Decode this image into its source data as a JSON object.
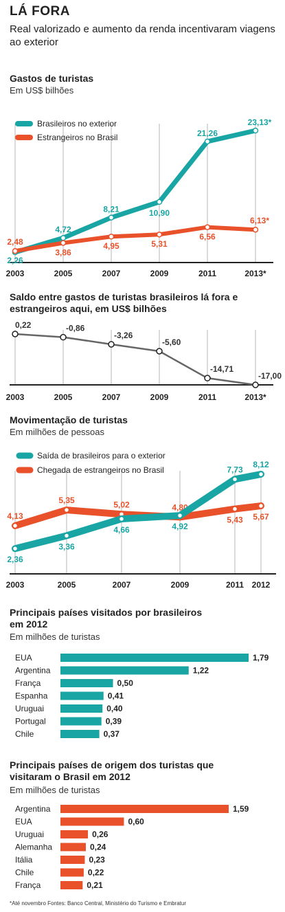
{
  "kicker": "LÁ FORA",
  "headline": "Real valorizado e aumento da renda incentivaram viagens ao exterior",
  "colors": {
    "teal": "#1aa5a5",
    "orange": "#e8512a",
    "axis": "#222",
    "grid": "#b5b5b5",
    "markerFill": "#ffffff",
    "neg": "#333333"
  },
  "footnote": "*Até novembro  Fontes: Banco Central, Ministério do Turismo e Embratur",
  "chart_data": [
    {
      "type": "line",
      "title": "Gastos de turistas",
      "subtitle": "Em US$ bilhões",
      "x_labels": [
        "2003",
        "2005",
        "2007",
        "2009",
        "2011",
        "2013*"
      ],
      "series": [
        {
          "name": "Brasileiros no exterior",
          "values": [
            2.26,
            4.72,
            8.21,
            10.9,
            21.26,
            23.13
          ],
          "labels": [
            "2,26",
            "4,72",
            "8,21",
            "10,90",
            "21,26",
            "23,13*"
          ]
        },
        {
          "name": "Estrangeiros no Brasil",
          "values": [
            2.48,
            3.86,
            4.95,
            5.31,
            6.56,
            6.13
          ],
          "labels": [
            "2,48",
            "3,86",
            "4,95",
            "5,31",
            "6,56",
            "6,13*"
          ]
        }
      ]
    },
    {
      "type": "line",
      "title": "Saldo entre gastos de turistas brasileiros lá fora e estrangeiros aqui, em US$ bilhões",
      "x_labels": [
        "2003",
        "2005",
        "2007",
        "2009",
        "2011",
        "2013*"
      ],
      "series": [
        {
          "values": [
            0.22,
            -0.86,
            -3.26,
            -5.6,
            -14.71,
            -17.0
          ],
          "labels": [
            "0,22",
            "-0,86",
            "-3,26",
            "-5,60",
            "-14,71",
            "-17,00"
          ]
        }
      ]
    },
    {
      "type": "line",
      "title": "Movimentação de turistas",
      "subtitle": "Em milhões de pessoas",
      "x_labels": [
        "2003",
        "2005",
        "2007",
        "2009",
        "2011",
        "2012"
      ],
      "series": [
        {
          "name": "Saída de brasileiros para o exterior",
          "values": [
            2.36,
            3.36,
            4.66,
            4.92,
            7.73,
            8.12
          ],
          "labels": [
            "2,36",
            "3,36",
            "4,66",
            "4,92",
            "7,73",
            "8,12"
          ]
        },
        {
          "name": "Chegada de estrangeiros no Brasil",
          "values": [
            4.13,
            5.35,
            5.02,
            4.8,
            5.43,
            5.67
          ],
          "labels": [
            "4,13",
            "5,35",
            "5,02",
            "4,80",
            "5,43",
            "5,67"
          ]
        }
      ]
    },
    {
      "type": "bar",
      "orientation": "horizontal",
      "title": "Principais países visitados por brasileiros em 2012",
      "subtitle": "Em milhões de turistas",
      "categories": [
        "EUA",
        "Argentina",
        "França",
        "Espanha",
        "Uruguai",
        "Portugal",
        "Chile"
      ],
      "values": [
        1.79,
        1.22,
        0.5,
        0.41,
        0.4,
        0.39,
        0.37
      ],
      "labels": [
        "1,79",
        "1,22",
        "0,50",
        "0,41",
        "0,40",
        "0,39",
        "0,37"
      ],
      "color": "#1aa5a5"
    },
    {
      "type": "bar",
      "orientation": "horizontal",
      "title": "Principais países de origem dos turistas que visitaram o Brasil em 2012",
      "subtitle": "Em milhões de turistas",
      "categories": [
        "Argentina",
        "EUA",
        "Uruguai",
        "Alemanha",
        "Itália",
        "Chile",
        "França"
      ],
      "values": [
        1.59,
        0.6,
        0.26,
        0.24,
        0.23,
        0.22,
        0.21
      ],
      "labels": [
        "1,59",
        "0,60",
        "0,26",
        "0,24",
        "0,23",
        "0,22",
        "0,21"
      ],
      "color": "#e8512a"
    }
  ]
}
